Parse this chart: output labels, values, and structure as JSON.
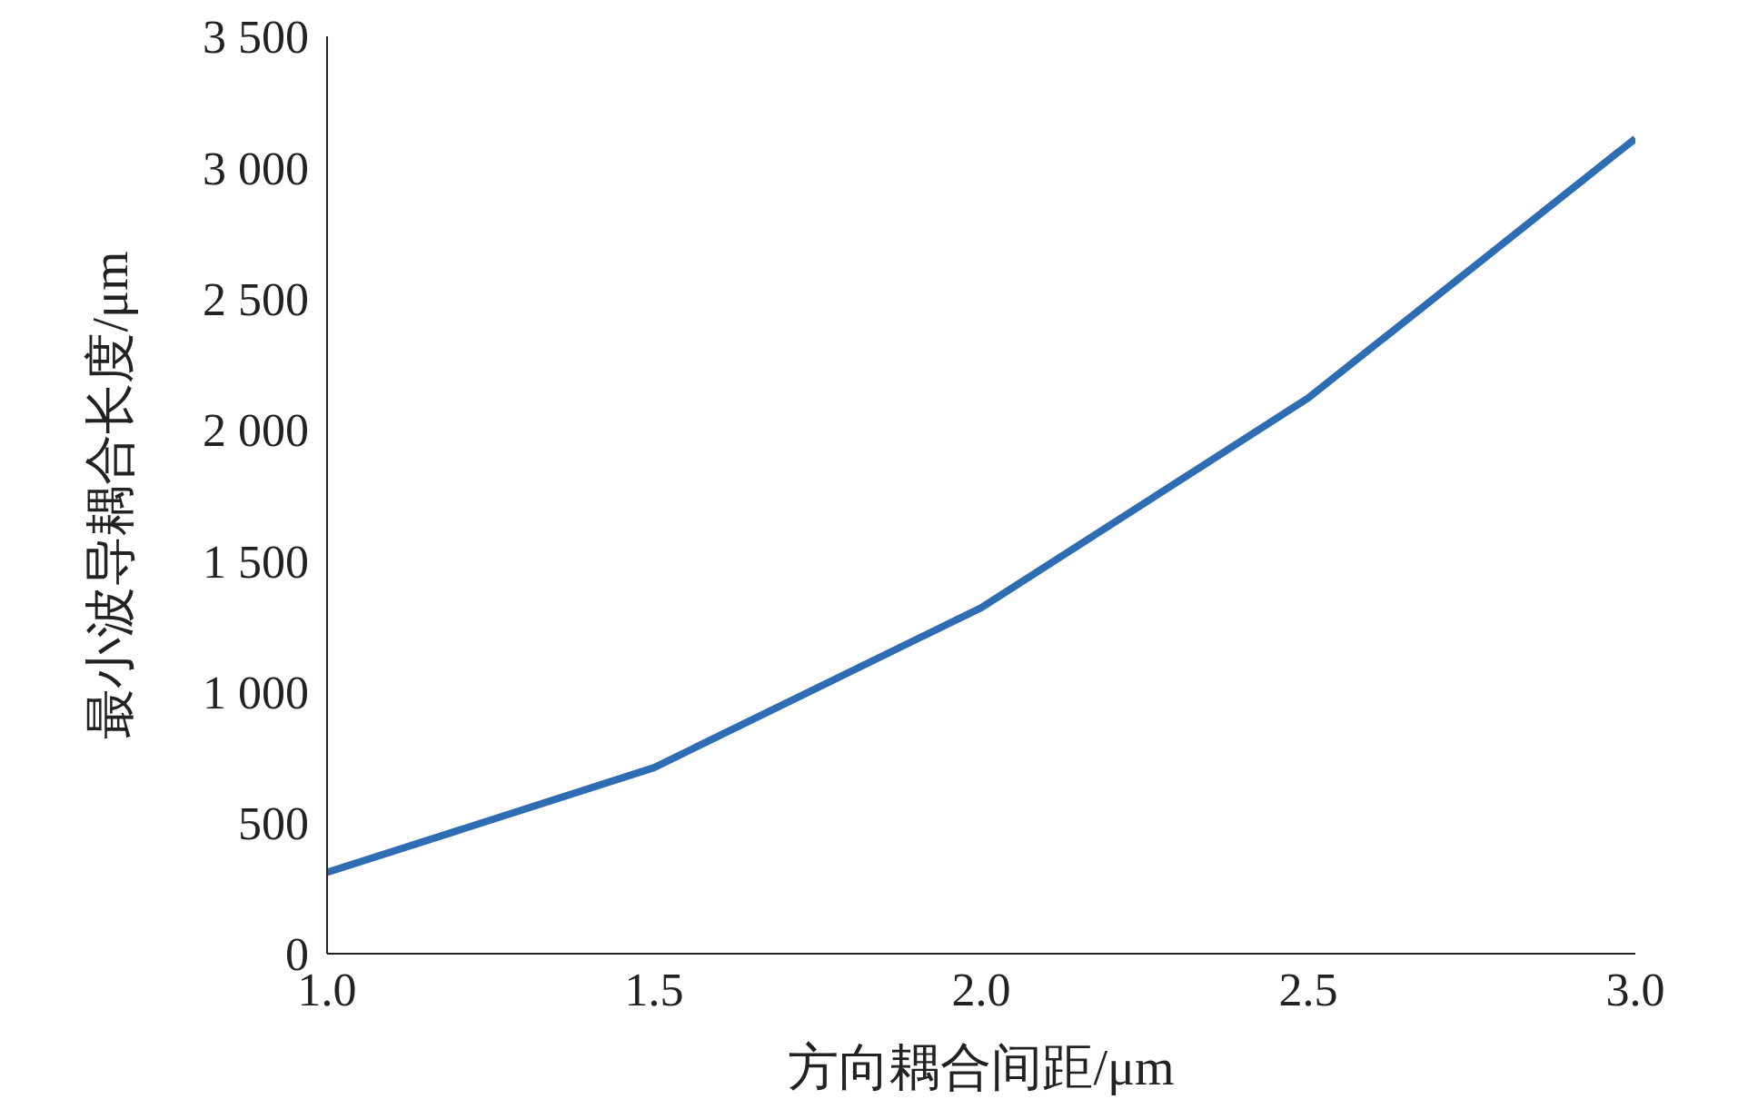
{
  "chart_data": {
    "type": "line",
    "xlabel": "方向耦合间距/μm",
    "ylabel": "最小波导耦合长度/μm",
    "x": [
      1.0,
      1.5,
      2.0,
      2.5,
      3.0
    ],
    "series": [
      {
        "color": "#2e6db4",
        "values": [
          310,
          710,
          1320,
          2120,
          3110
        ]
      }
    ],
    "xlim": [
      1.0,
      3.0
    ],
    "xticks": [
      {
        "value": 1,
        "label": "1.0"
      },
      1.5,
      {
        "value": 2,
        "label": "2.0"
      },
      2.5,
      {
        "value": 3,
        "label": "3.0"
      }
    ],
    "ylim": [
      0,
      3500
    ],
    "yticks": [
      0,
      500,
      {
        "value": 1000,
        "label": "1 000"
      },
      {
        "value": 1500,
        "label": "1 500"
      },
      {
        "value": 2000,
        "label": "2 000"
      },
      {
        "value": 2500,
        "label": "2 500"
      },
      {
        "value": 3000,
        "label": "3 000"
      },
      {
        "value": 3500,
        "label": "3 500"
      }
    ],
    "grid": false,
    "legend": false,
    "marker": "none",
    "line_style": "solid"
  }
}
